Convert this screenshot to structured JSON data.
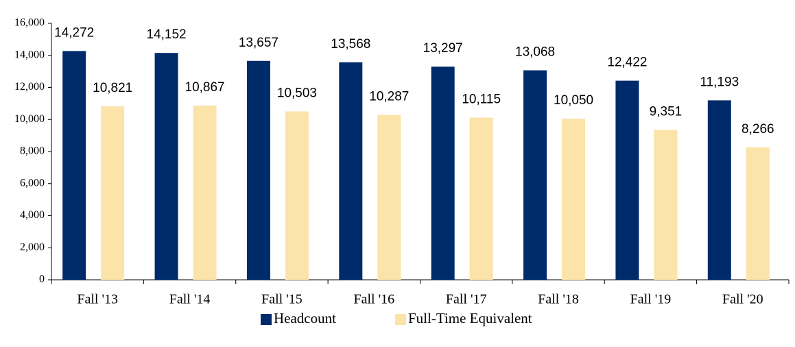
{
  "chart_data": {
    "type": "bar",
    "categories": [
      "Fall '13",
      "Fall '14",
      "Fall '15",
      "Fall '16",
      "Fall '17",
      "Fall '18",
      "Fall '19",
      "Fall '20"
    ],
    "series": [
      {
        "name": "Headcount",
        "color": "#002b6b",
        "values": [
          14272,
          14152,
          13657,
          13568,
          13297,
          13068,
          12422,
          11193
        ],
        "value_labels": [
          "14,272",
          "14,152",
          "13,657",
          "13,568",
          "13,297",
          "13,068",
          "12,422",
          "11,193"
        ]
      },
      {
        "name": "Full-Time Equivalent",
        "color": "#fbe3a9",
        "values": [
          10821,
          10867,
          10503,
          10287,
          10115,
          10050,
          9351,
          8266
        ],
        "value_labels": [
          "10,821",
          "10,867",
          "10,503",
          "10,287",
          "10,115",
          "10,050",
          "9,351",
          "8,266"
        ]
      }
    ],
    "ylim": [
      0,
      16000
    ],
    "yticks": [
      0,
      {
        "value": 2000,
        "label": "2,000"
      },
      {
        "value": 4000,
        "label": "4,000"
      },
      {
        "value": 6000,
        "label": "6,000"
      },
      {
        "value": 8000,
        "label": "8,000"
      },
      {
        "value": 10000,
        "label": "10,000"
      },
      {
        "value": 12000,
        "label": "12,000"
      },
      {
        "value": 14000,
        "label": "14,000"
      },
      {
        "value": 16000,
        "label": "16,000"
      }
    ],
    "grid": false,
    "legend": "bottom"
  }
}
